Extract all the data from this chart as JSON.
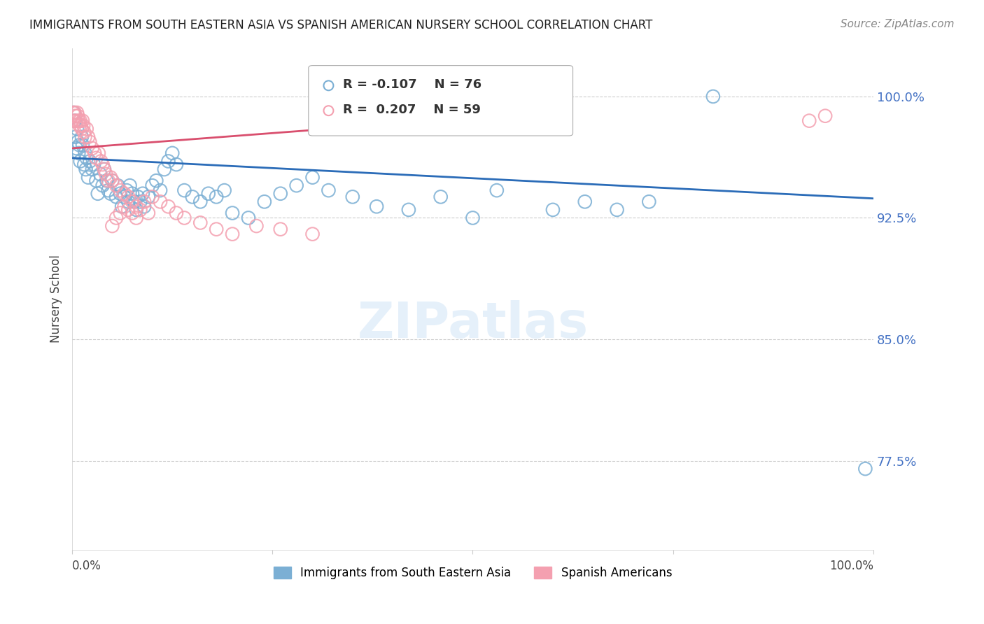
{
  "title": "IMMIGRANTS FROM SOUTH EASTERN ASIA VS SPANISH AMERICAN NURSERY SCHOOL CORRELATION CHART",
  "source": "Source: ZipAtlas.com",
  "ylabel": "Nursery School",
  "legend_blue_label": "Immigrants from South Eastern Asia",
  "legend_pink_label": "Spanish Americans",
  "ytick_labels": [
    "100.0%",
    "92.5%",
    "85.0%",
    "77.5%"
  ],
  "ytick_values": [
    1.0,
    0.925,
    0.85,
    0.775
  ],
  "ymin": 0.72,
  "ymax": 1.03,
  "xmin": 0.0,
  "xmax": 1.0,
  "blue_color": "#7bafd4",
  "pink_color": "#f4a0b0",
  "blue_line_color": "#2b6cb8",
  "pink_line_color": "#d94f6e",
  "grid_color": "#cccccc",
  "title_color": "#222222",
  "source_color": "#888888",
  "ytick_color": "#4472c4",
  "background_color": "#ffffff",
  "blue_scatter_x": [
    0.002,
    0.003,
    0.004,
    0.005,
    0.006,
    0.007,
    0.008,
    0.009,
    0.01,
    0.012,
    0.013,
    0.015,
    0.016,
    0.017,
    0.018,
    0.02,
    0.022,
    0.025,
    0.027,
    0.03,
    0.032,
    0.035,
    0.038,
    0.04,
    0.043,
    0.045,
    0.048,
    0.05,
    0.055,
    0.057,
    0.06,
    0.062,
    0.065,
    0.068,
    0.07,
    0.072,
    0.075,
    0.078,
    0.08,
    0.082,
    0.085,
    0.088,
    0.09,
    0.095,
    0.1,
    0.105,
    0.11,
    0.115,
    0.12,
    0.125,
    0.13,
    0.14,
    0.15,
    0.16,
    0.17,
    0.18,
    0.19,
    0.2,
    0.22,
    0.24,
    0.26,
    0.28,
    0.3,
    0.32,
    0.35,
    0.38,
    0.42,
    0.46,
    0.5,
    0.53,
    0.6,
    0.64,
    0.68,
    0.72,
    0.8,
    0.99
  ],
  "blue_scatter_y": [
    0.99,
    0.985,
    0.975,
    0.968,
    0.98,
    0.972,
    0.965,
    0.97,
    0.96,
    0.975,
    0.97,
    0.958,
    0.965,
    0.955,
    0.962,
    0.95,
    0.96,
    0.955,
    0.958,
    0.948,
    0.94,
    0.952,
    0.945,
    0.955,
    0.948,
    0.942,
    0.94,
    0.948,
    0.938,
    0.945,
    0.94,
    0.932,
    0.938,
    0.942,
    0.935,
    0.945,
    0.94,
    0.935,
    0.93,
    0.938,
    0.935,
    0.94,
    0.932,
    0.938,
    0.945,
    0.948,
    0.942,
    0.955,
    0.96,
    0.965,
    0.958,
    0.942,
    0.938,
    0.935,
    0.94,
    0.938,
    0.942,
    0.928,
    0.925,
    0.935,
    0.94,
    0.945,
    0.95,
    0.942,
    0.938,
    0.932,
    0.93,
    0.938,
    0.925,
    0.942,
    0.93,
    0.935,
    0.93,
    0.935,
    1.0,
    0.77
  ],
  "pink_scatter_x": [
    0.001,
    0.002,
    0.003,
    0.004,
    0.005,
    0.006,
    0.007,
    0.008,
    0.009,
    0.01,
    0.011,
    0.012,
    0.013,
    0.014,
    0.015,
    0.016,
    0.018,
    0.02,
    0.022,
    0.025,
    0.028,
    0.03,
    0.033,
    0.036,
    0.038,
    0.04,
    0.042,
    0.045,
    0.048,
    0.05,
    0.055,
    0.06,
    0.065,
    0.07,
    0.075,
    0.08,
    0.085,
    0.09,
    0.095,
    0.1,
    0.11,
    0.12,
    0.13,
    0.14,
    0.16,
    0.18,
    0.2,
    0.23,
    0.26,
    0.3,
    0.05,
    0.055,
    0.06,
    0.065,
    0.07,
    0.075,
    0.08,
    0.92,
    0.94
  ],
  "pink_scatter_y": [
    0.99,
    0.985,
    0.99,
    0.988,
    0.985,
    0.99,
    0.988,
    0.985,
    0.982,
    0.985,
    0.982,
    0.98,
    0.985,
    0.982,
    0.978,
    0.975,
    0.98,
    0.975,
    0.972,
    0.968,
    0.965,
    0.962,
    0.965,
    0.96,
    0.958,
    0.955,
    0.952,
    0.948,
    0.95,
    0.948,
    0.945,
    0.942,
    0.94,
    0.938,
    0.935,
    0.932,
    0.93,
    0.935,
    0.928,
    0.938,
    0.935,
    0.932,
    0.928,
    0.925,
    0.922,
    0.918,
    0.915,
    0.92,
    0.918,
    0.915,
    0.92,
    0.925,
    0.928,
    0.932,
    0.93,
    0.928,
    0.925,
    0.985,
    0.988
  ],
  "blue_line_x": [
    0.0,
    1.0
  ],
  "blue_line_y_start": 0.962,
  "blue_line_y_end": 0.937,
  "pink_line_x": [
    0.0,
    0.32
  ],
  "pink_line_y_start": 0.968,
  "pink_line_y_end": 0.98
}
